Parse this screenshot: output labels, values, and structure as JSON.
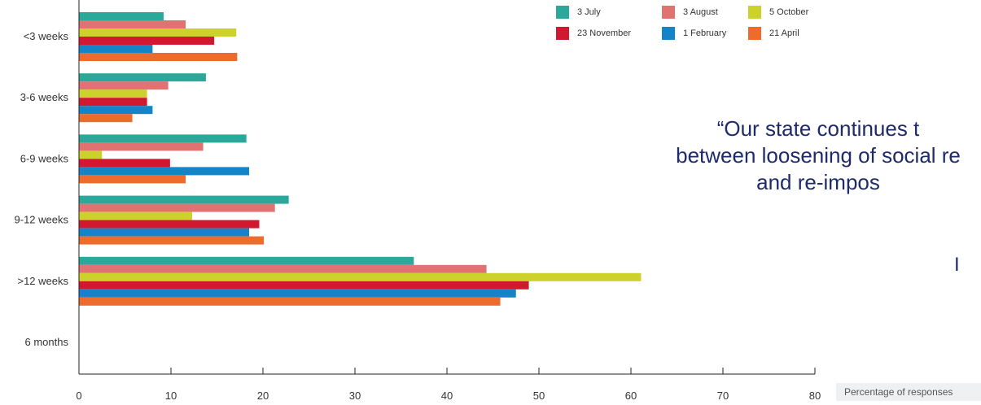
{
  "chart_data": {
    "type": "bar",
    "orientation": "horizontal",
    "categories": [
      "<3 weeks",
      "3-6 weeks",
      "6-9 weeks",
      "9-12 weeks",
      ">12 weeks",
      "6 months"
    ],
    "series": [
      {
        "name": "3 July",
        "color": "#2aa99b",
        "values": [
          9.2,
          13.8,
          18.2,
          22.8,
          36.4,
          0
        ]
      },
      {
        "name": "3 August",
        "color": "#e07272",
        "values": [
          11.6,
          9.7,
          13.5,
          21.3,
          44.3,
          0
        ]
      },
      {
        "name": "5 October",
        "color": "#cdd12c",
        "values": [
          17.1,
          7.4,
          2.5,
          12.3,
          61.1,
          0
        ]
      },
      {
        "name": "23 November",
        "color": "#d0192f",
        "values": [
          14.7,
          7.4,
          9.9,
          19.6,
          48.9,
          0
        ]
      },
      {
        "name": "1 February",
        "color": "#1584c6",
        "values": [
          8.0,
          8.0,
          18.5,
          18.5,
          47.5,
          0
        ]
      },
      {
        "name": "21 April",
        "color": "#ec6b2d",
        "values": [
          17.2,
          5.8,
          11.6,
          20.1,
          45.8,
          0
        ]
      }
    ],
    "x_ticks": [
      "0",
      "10",
      "20",
      "30",
      "40",
      "50",
      "60",
      "70",
      "80"
    ],
    "xlim": [
      0,
      80
    ],
    "xlabel": "Percentage of responses",
    "title": "",
    "ylabel": "",
    "grid": false,
    "legend_position": "top-right"
  },
  "quote": {
    "lines": [
      "“Our state continues t",
      "between loosening of social re",
      "and re-impos"
    ],
    "tail": "I"
  }
}
